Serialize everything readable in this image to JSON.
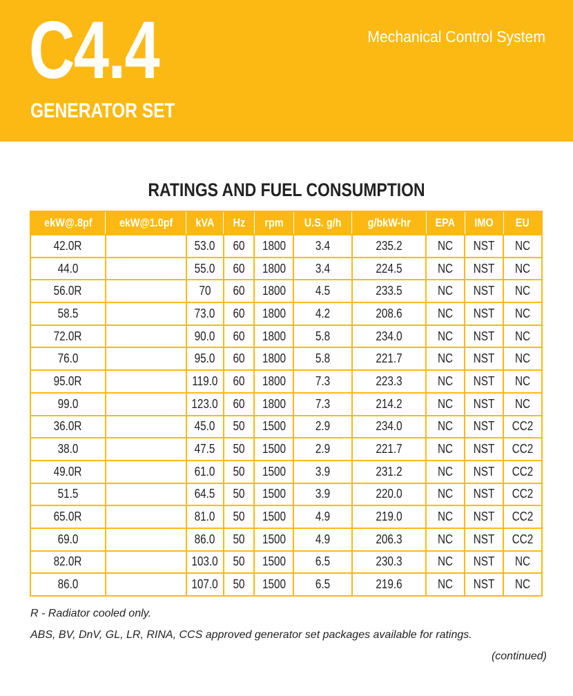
{
  "header": {
    "model": "C4.4",
    "subtitle": "GENERATOR SET",
    "system": "Mechanical Control System",
    "accent_color": "#FDB913"
  },
  "section_title": "RATINGS AND FUEL CONSUMPTION",
  "table": {
    "columns": [
      "ekW@.8pf",
      "ekW@1.0pf",
      "kVA",
      "Hz",
      "rpm",
      "U.S. g/h",
      "g/bkW-hr",
      "EPA",
      "IMO",
      "EU"
    ],
    "rows": [
      [
        "42.0R",
        "",
        "53.0",
        "60",
        "1800",
        "3.4",
        "235.2",
        "NC",
        "NST",
        "NC"
      ],
      [
        "44.0",
        "",
        "55.0",
        "60",
        "1800",
        "3.4",
        "224.5",
        "NC",
        "NST",
        "NC"
      ],
      [
        "56.0R",
        "",
        "70",
        "60",
        "1800",
        "4.5",
        "233.5",
        "NC",
        "NST",
        "NC"
      ],
      [
        "58.5",
        "",
        "73.0",
        "60",
        "1800",
        "4.2",
        "208.6",
        "NC",
        "NST",
        "NC"
      ],
      [
        "72.0R",
        "",
        "90.0",
        "60",
        "1800",
        "5.8",
        "234.0",
        "NC",
        "NST",
        "NC"
      ],
      [
        "76.0",
        "",
        "95.0",
        "60",
        "1800",
        "5.8",
        "221.7",
        "NC",
        "NST",
        "NC"
      ],
      [
        "95.0R",
        "",
        "119.0",
        "60",
        "1800",
        "7.3",
        "223.3",
        "NC",
        "NST",
        "NC"
      ],
      [
        "99.0",
        "",
        "123.0",
        "60",
        "1800",
        "7.3",
        "214.2",
        "NC",
        "NST",
        "NC"
      ],
      [
        "36.0R",
        "",
        "45.0",
        "50",
        "1500",
        "2.9",
        "234.0",
        "NC",
        "NST",
        "CC2"
      ],
      [
        "38.0",
        "",
        "47.5",
        "50",
        "1500",
        "2.9",
        "221.7",
        "NC",
        "NST",
        "CC2"
      ],
      [
        "49.0R",
        "",
        "61.0",
        "50",
        "1500",
        "3.9",
        "231.2",
        "NC",
        "NST",
        "CC2"
      ],
      [
        "51.5",
        "",
        "64.5",
        "50",
        "1500",
        "3.9",
        "220.0",
        "NC",
        "NST",
        "CC2"
      ],
      [
        "65.0R",
        "",
        "81.0",
        "50",
        "1500",
        "4.9",
        "219.0",
        "NC",
        "NST",
        "CC2"
      ],
      [
        "69.0",
        "",
        "86.0",
        "50",
        "1500",
        "4.9",
        "206.3",
        "NC",
        "NST",
        "CC2"
      ],
      [
        "82.0R",
        "",
        "103.0",
        "50",
        "1500",
        "6.5",
        "230.3",
        "NC",
        "NST",
        "NC"
      ],
      [
        "86.0",
        "",
        "107.0",
        "50",
        "1500",
        "6.5",
        "219.6",
        "NC",
        "NST",
        "NC"
      ]
    ]
  },
  "notes": [
    "R - Radiator cooled only.",
    "ABS, BV, DnV, GL, LR, RINA, CCS approved generator set packages available for ratings."
  ],
  "continued": "(continued)"
}
